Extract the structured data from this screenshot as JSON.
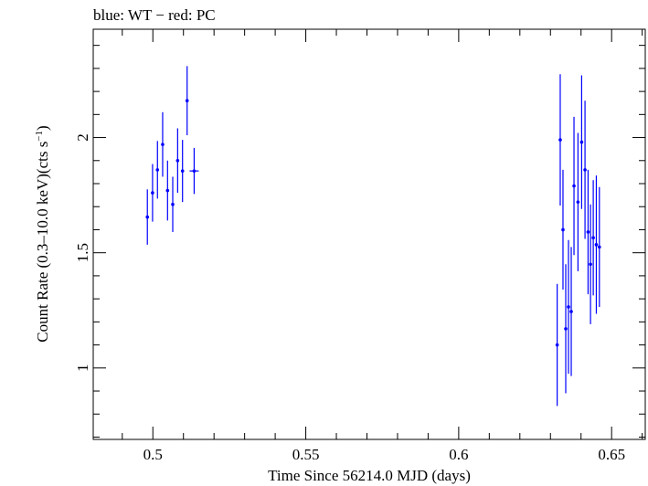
{
  "chart_data": {
    "type": "scatter",
    "title": "blue: WT − red: PC",
    "xlabel": "Time Since 56214.0 MJD (days)",
    "ylabel_main": "Count Rate (0.3–10.0 keV)(cts s",
    "ylabel_sup": "−1",
    "ylabel_end": ")",
    "xlim": [
      0.4805,
      0.661
    ],
    "ylim": [
      0.69,
      2.47
    ],
    "xticks": [
      {
        "v": 0.5,
        "label": "0.5"
      },
      {
        "v": 0.55,
        "label": "0.55"
      },
      {
        "v": 0.6,
        "label": "0.6"
      },
      {
        "v": 0.65,
        "label": "0.65"
      }
    ],
    "x_minor_step": 0.01,
    "yticks": [
      {
        "v": 1.0,
        "label": "1"
      },
      {
        "v": 1.5,
        "label": "1.5"
      },
      {
        "v": 2.0,
        "label": "2"
      }
    ],
    "y_minor_step": 0.1,
    "series": [
      {
        "name": "WT",
        "color": "#0000ff",
        "points": [
          {
            "x": 0.4982,
            "y": 1.655,
            "yerr": 0.12,
            "xerr": 0.0003
          },
          {
            "x": 0.4999,
            "y": 1.76,
            "yerr": 0.125,
            "xerr": 0.0003
          },
          {
            "x": 0.5015,
            "y": 1.86,
            "yerr": 0.125,
            "xerr": 0.0003
          },
          {
            "x": 0.5032,
            "y": 1.97,
            "yerr": 0.14,
            "xerr": 0.0003
          },
          {
            "x": 0.5048,
            "y": 1.77,
            "yerr": 0.13,
            "xerr": 0.0003
          },
          {
            "x": 0.5065,
            "y": 1.71,
            "yerr": 0.12,
            "xerr": 0.0003
          },
          {
            "x": 0.5081,
            "y": 1.9,
            "yerr": 0.14,
            "xerr": 0.0003
          },
          {
            "x": 0.5097,
            "y": 1.855,
            "yerr": 0.135,
            "xerr": 0.0003
          },
          {
            "x": 0.5112,
            "y": 2.16,
            "yerr": 0.15,
            "xerr": 0.0003
          },
          {
            "x": 0.5135,
            "y": 1.855,
            "yerr": 0.1,
            "xerr": 0.0015
          },
          {
            "x": 0.6322,
            "y": 1.1,
            "yerr": 0.265,
            "xerr": 0.0002
          },
          {
            "x": 0.6332,
            "y": 1.99,
            "yerr": 0.285,
            "xerr": 0.0002
          },
          {
            "x": 0.6341,
            "y": 1.6,
            "yerr": 0.26,
            "xerr": 0.0002
          },
          {
            "x": 0.635,
            "y": 1.17,
            "yerr": 0.28,
            "xerr": 0.0002
          },
          {
            "x": 0.6359,
            "y": 1.265,
            "yerr": 0.29,
            "xerr": 0.0002
          },
          {
            "x": 0.6368,
            "y": 1.245,
            "yerr": 0.28,
            "xerr": 0.0002
          },
          {
            "x": 0.6377,
            "y": 1.79,
            "yerr": 0.3,
            "xerr": 0.0002
          },
          {
            "x": 0.639,
            "y": 1.72,
            "yerr": 0.3,
            "xerr": 0.0002
          },
          {
            "x": 0.6402,
            "y": 1.98,
            "yerr": 0.29,
            "xerr": 0.0002
          },
          {
            "x": 0.6413,
            "y": 1.86,
            "yerr": 0.3,
            "xerr": 0.0002
          },
          {
            "x": 0.6423,
            "y": 1.59,
            "yerr": 0.27,
            "xerr": 0.0002
          },
          {
            "x": 0.6431,
            "y": 1.45,
            "yerr": 0.26,
            "xerr": 0.0002
          },
          {
            "x": 0.644,
            "y": 1.565,
            "yerr": 0.25,
            "xerr": 0.0002
          },
          {
            "x": 0.645,
            "y": 1.535,
            "yerr": 0.3,
            "xerr": 0.0002
          },
          {
            "x": 0.646,
            "y": 1.525,
            "yerr": 0.26,
            "xerr": 0.0002
          }
        ]
      },
      {
        "name": "PC",
        "color": "#ff0000",
        "points": []
      }
    ]
  }
}
